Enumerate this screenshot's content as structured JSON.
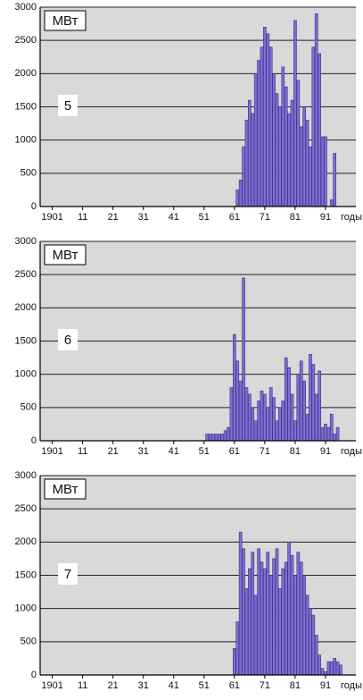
{
  "chart_data": [
    {
      "type": "bar",
      "unit": "МВт",
      "panel_label": "5",
      "x_label": "годы",
      "color": "#7f6fd0",
      "grid": true,
      "xlim": [
        1897,
        2001
      ],
      "ylim": [
        0,
        3000
      ],
      "yticks": [
        0,
        500,
        1000,
        1500,
        2000,
        2500,
        3000
      ],
      "xticks": [
        {
          "value": 1901,
          "label": "1901"
        },
        {
          "value": 1911,
          "label": "11"
        },
        {
          "value": 1921,
          "label": "21"
        },
        {
          "value": 1931,
          "label": "31"
        },
        {
          "value": 1941,
          "label": "41"
        },
        {
          "value": 1951,
          "label": "51"
        },
        {
          "value": 1961,
          "label": "61"
        },
        {
          "value": 1971,
          "label": "71"
        },
        {
          "value": 1981,
          "label": "81"
        },
        {
          "value": 1991,
          "label": "91"
        }
      ],
      "x": [
        1962,
        1963,
        1964,
        1965,
        1966,
        1967,
        1968,
        1969,
        1970,
        1971,
        1972,
        1973,
        1974,
        1975,
        1976,
        1977,
        1978,
        1979,
        1980,
        1981,
        1982,
        1983,
        1984,
        1985,
        1986,
        1987,
        1988,
        1989,
        1990,
        1991,
        1993,
        1994
      ],
      "values": [
        250,
        400,
        900,
        1300,
        1600,
        1400,
        2000,
        2200,
        2400,
        2700,
        2600,
        2400,
        2000,
        1700,
        1500,
        2100,
        1800,
        1400,
        1600,
        2800,
        1900,
        1200,
        1500,
        1300,
        900,
        2400,
        2900,
        2300,
        1050,
        1050,
        100,
        800
      ]
    },
    {
      "type": "bar",
      "unit": "МВт",
      "panel_label": "6",
      "x_label": "годы",
      "color": "#7f6fd0",
      "grid": true,
      "xlim": [
        1897,
        2001
      ],
      "ylim": [
        0,
        3000
      ],
      "yticks": [
        0,
        500,
        1000,
        1500,
        2000,
        2500,
        3000
      ],
      "xticks": [
        {
          "value": 1901,
          "label": "1901"
        },
        {
          "value": 1911,
          "label": "11"
        },
        {
          "value": 1921,
          "label": "21"
        },
        {
          "value": 1931,
          "label": "31"
        },
        {
          "value": 1941,
          "label": "41"
        },
        {
          "value": 1951,
          "label": "51"
        },
        {
          "value": 1961,
          "label": "61"
        },
        {
          "value": 1971,
          "label": "71"
        },
        {
          "value": 1981,
          "label": "81"
        },
        {
          "value": 1991,
          "label": "91"
        }
      ],
      "x": [
        1952,
        1953,
        1954,
        1955,
        1956,
        1957,
        1958,
        1959,
        1960,
        1961,
        1962,
        1963,
        1964,
        1965,
        1966,
        1967,
        1968,
        1969,
        1970,
        1971,
        1972,
        1973,
        1974,
        1975,
        1976,
        1977,
        1978,
        1979,
        1980,
        1981,
        1982,
        1983,
        1984,
        1985,
        1986,
        1987,
        1988,
        1989,
        1990,
        1991,
        1992,
        1993,
        1994,
        1995
      ],
      "values": [
        100,
        100,
        100,
        100,
        100,
        100,
        150,
        200,
        800,
        1600,
        1200,
        900,
        2450,
        800,
        700,
        500,
        300,
        600,
        750,
        700,
        500,
        800,
        650,
        300,
        500,
        600,
        1250,
        1100,
        700,
        300,
        1000,
        1200,
        900,
        400,
        1300,
        1150,
        700,
        1050,
        200,
        250,
        200,
        400,
        100,
        200
      ]
    },
    {
      "type": "bar",
      "unit": "МВт",
      "panel_label": "7",
      "x_label": "годы",
      "color": "#7f6fd0",
      "grid": true,
      "xlim": [
        1897,
        2001
      ],
      "ylim": [
        0,
        3000
      ],
      "yticks": [
        0,
        500,
        1000,
        1500,
        2000,
        2500,
        3000
      ],
      "xticks": [
        {
          "value": 1901,
          "label": "1901"
        },
        {
          "value": 1911,
          "label": "11"
        },
        {
          "value": 1921,
          "label": "21"
        },
        {
          "value": 1931,
          "label": "31"
        },
        {
          "value": 1941,
          "label": "41"
        },
        {
          "value": 1951,
          "label": "51"
        },
        {
          "value": 1961,
          "label": "61"
        },
        {
          "value": 1971,
          "label": "71"
        },
        {
          "value": 1981,
          "label": "81"
        },
        {
          "value": 1991,
          "label": "91"
        }
      ],
      "x": [
        1961,
        1962,
        1963,
        1964,
        1965,
        1966,
        1967,
        1968,
        1969,
        1970,
        1971,
        1972,
        1973,
        1974,
        1975,
        1976,
        1977,
        1978,
        1979,
        1980,
        1981,
        1982,
        1983,
        1984,
        1985,
        1986,
        1987,
        1988,
        1989,
        1990,
        1991,
        1992,
        1993,
        1994,
        1995,
        1996
      ],
      "values": [
        400,
        800,
        2150,
        1900,
        1300,
        1600,
        1850,
        1200,
        1900,
        1700,
        1600,
        1850,
        1500,
        1750,
        1900,
        1300,
        1600,
        1700,
        2000,
        1800,
        1500,
        1850,
        1700,
        1500,
        1200,
        1000,
        900,
        600,
        300,
        100,
        50,
        200,
        200,
        250,
        200,
        150
      ]
    }
  ]
}
